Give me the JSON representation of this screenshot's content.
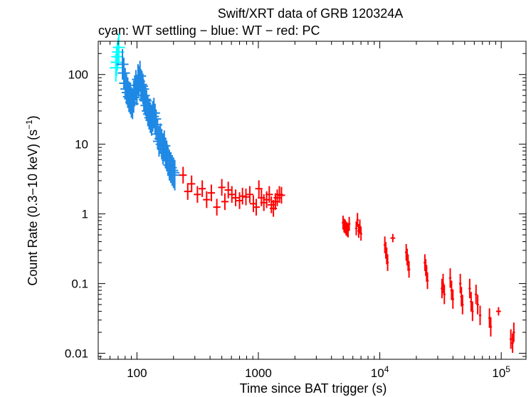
{
  "chart_data": {
    "type": "scatter",
    "title": "Swift/XRT data of GRB 120324A",
    "subtitle": "cyan: WT settling − blue: WT − red: PC",
    "xlabel": "Time since BAT trigger (s)",
    "ylabel_main": "Count Rate (0.3−10 keV) (s",
    "ylabel_sup": "−1",
    "ylabel_end": ")",
    "x_scale": "log",
    "y_scale": "log",
    "xlim": [
      48,
      160000
    ],
    "ylim": [
      0.0082,
      300
    ],
    "x_ticks": [
      {
        "value": 100,
        "label": "100"
      },
      {
        "value": 1000,
        "label": "1000"
      },
      {
        "value": 10000,
        "base": "10",
        "exp": "4"
      },
      {
        "value": 100000,
        "base": "10",
        "exp": "5"
      }
    ],
    "y_ticks": [
      {
        "value": 100,
        "label": "100"
      },
      {
        "value": 10,
        "label": "10"
      },
      {
        "value": 1,
        "label": "1"
      },
      {
        "value": 0.1,
        "label": "0.1"
      },
      {
        "value": 0.01,
        "label": "0.01"
      }
    ],
    "series": [
      {
        "name": "WT settling",
        "color": "#00ffff",
        "points": [
          [
            67,
            125,
            0.05,
            0.2
          ],
          [
            68,
            150,
            0.05,
            0.2
          ],
          [
            69,
            180,
            0.05,
            0.2
          ],
          [
            70,
            210,
            0.05,
            0.2
          ],
          [
            71,
            245,
            0.05,
            0.2
          ]
        ]
      },
      {
        "name": "WT",
        "color": "#1e88e5",
        "points": [
          [
            76,
            140,
            0.05,
            0.22
          ],
          [
            78,
            105,
            0.05,
            0.22
          ],
          [
            80,
            75,
            0.05,
            0.22
          ],
          [
            82,
            62,
            0.05,
            0.22
          ],
          [
            84,
            55,
            0.05,
            0.22
          ],
          [
            86,
            48,
            0.05,
            0.22
          ],
          [
            88,
            45,
            0.05,
            0.22
          ],
          [
            90,
            40,
            0.05,
            0.22
          ],
          [
            92,
            38,
            0.05,
            0.22
          ],
          [
            94,
            47,
            0.05,
            0.22
          ],
          [
            96,
            58,
            0.05,
            0.22
          ],
          [
            98,
            70,
            0.05,
            0.22
          ],
          [
            100,
            60,
            0.05,
            0.22
          ],
          [
            102,
            85,
            0.05,
            0.22
          ],
          [
            104,
            80,
            0.05,
            0.22
          ],
          [
            106,
            95,
            0.05,
            0.22
          ],
          [
            108,
            72,
            0.05,
            0.22
          ],
          [
            110,
            68,
            0.05,
            0.22
          ],
          [
            112,
            62,
            0.05,
            0.22
          ],
          [
            114,
            50,
            0.05,
            0.22
          ],
          [
            116,
            44,
            0.05,
            0.22
          ],
          [
            118,
            42,
            0.05,
            0.22
          ],
          [
            120,
            36,
            0.05,
            0.22
          ],
          [
            123,
            30,
            0.05,
            0.22
          ],
          [
            126,
            27,
            0.05,
            0.22
          ],
          [
            129,
            24,
            0.05,
            0.22
          ],
          [
            132,
            22,
            0.05,
            0.22
          ],
          [
            135,
            25,
            0.05,
            0.22
          ],
          [
            138,
            28,
            0.05,
            0.22
          ],
          [
            141,
            23,
            0.05,
            0.22
          ],
          [
            144,
            19,
            0.05,
            0.22
          ],
          [
            148,
            14,
            0.05,
            0.22
          ],
          [
            152,
            11,
            0.05,
            0.22
          ],
          [
            156,
            12,
            0.05,
            0.22
          ],
          [
            160,
            10,
            0.05,
            0.22
          ],
          [
            164,
            8.5,
            0.05,
            0.22
          ],
          [
            168,
            9.5,
            0.05,
            0.22
          ],
          [
            172,
            7.5,
            0.05,
            0.22
          ],
          [
            176,
            6.8,
            0.05,
            0.22
          ],
          [
            180,
            5.8,
            0.05,
            0.22
          ],
          [
            185,
            5.0,
            0.05,
            0.22
          ],
          [
            190,
            4.6,
            0.05,
            0.22
          ],
          [
            195,
            4.2,
            0.05,
            0.22
          ],
          [
            200,
            3.9,
            0.05,
            0.22
          ],
          [
            205,
            3.6,
            0.05,
            0.22
          ]
        ]
      },
      {
        "name": "PC",
        "color": "#ff0000",
        "points": [
          [
            240,
            3.6,
            0.03,
            0.12
          ],
          [
            262,
            2.1,
            0.03,
            0.12
          ],
          [
            282,
            2.7,
            0.03,
            0.12
          ],
          [
            315,
            1.9,
            0.03,
            0.12
          ],
          [
            345,
            2.3,
            0.03,
            0.12
          ],
          [
            375,
            1.6,
            0.03,
            0.12
          ],
          [
            410,
            2.0,
            0.03,
            0.12
          ],
          [
            455,
            1.25,
            0.03,
            0.12
          ],
          [
            500,
            2.4,
            0.03,
            0.12
          ],
          [
            530,
            1.5,
            0.03,
            0.12
          ],
          [
            565,
            2.2,
            0.03,
            0.12
          ],
          [
            605,
            1.9,
            0.03,
            0.12
          ],
          [
            650,
            1.7,
            0.03,
            0.12
          ],
          [
            700,
            1.55,
            0.03,
            0.12
          ],
          [
            740,
            1.8,
            0.03,
            0.12
          ],
          [
            790,
            1.75,
            0.03,
            0.12
          ],
          [
            850,
            1.9,
            0.03,
            0.12
          ],
          [
            910,
            1.4,
            0.03,
            0.12
          ],
          [
            960,
            1.25,
            0.03,
            0.12
          ],
          [
            1010,
            2.3,
            0.03,
            0.12
          ],
          [
            1060,
            1.7,
            0.03,
            0.12
          ],
          [
            1110,
            1.45,
            0.03,
            0.12
          ],
          [
            1170,
            1.6,
            0.03,
            0.12
          ],
          [
            1230,
            1.9,
            0.03,
            0.12
          ],
          [
            1280,
            1.35,
            0.03,
            0.12
          ],
          [
            1330,
            1.2,
            0.03,
            0.12
          ],
          [
            1380,
            1.5,
            0.03,
            0.12
          ],
          [
            1430,
            1.7,
            0.03,
            0.12
          ],
          [
            1490,
            1.9,
            0.03,
            0.12
          ],
          [
            1550,
            1.85,
            0.03,
            0.12
          ],
          [
            4980,
            0.75,
            0.01,
            0.1
          ],
          [
            5080,
            0.68,
            0.01,
            0.1
          ],
          [
            5180,
            0.66,
            0.01,
            0.1
          ],
          [
            5280,
            0.62,
            0.01,
            0.1
          ],
          [
            5380,
            0.6,
            0.01,
            0.1
          ],
          [
            5480,
            0.58,
            0.01,
            0.1
          ],
          [
            5600,
            0.72,
            0.01,
            0.1
          ],
          [
            6400,
            0.62,
            0.01,
            0.1
          ],
          [
            6550,
            0.82,
            0.01,
            0.1
          ],
          [
            6700,
            0.57,
            0.01,
            0.1
          ],
          [
            6850,
            0.66,
            0.01,
            0.1
          ],
          [
            7000,
            0.52,
            0.01,
            0.1
          ],
          [
            11000,
            0.36,
            0.01,
            0.12
          ],
          [
            11200,
            0.3,
            0.01,
            0.12
          ],
          [
            11400,
            0.25,
            0.01,
            0.12
          ],
          [
            11600,
            0.2,
            0.01,
            0.12
          ],
          [
            12800,
            0.45,
            0.02,
            0.06
          ],
          [
            16500,
            0.28,
            0.01,
            0.12
          ],
          [
            16800,
            0.24,
            0.01,
            0.12
          ],
          [
            17100,
            0.2,
            0.01,
            0.12
          ],
          [
            17400,
            0.16,
            0.01,
            0.12
          ],
          [
            23500,
            0.2,
            0.01,
            0.12
          ],
          [
            23900,
            0.17,
            0.01,
            0.12
          ],
          [
            24300,
            0.14,
            0.01,
            0.12
          ],
          [
            24700,
            0.11,
            0.01,
            0.12
          ],
          [
            32500,
            0.085,
            0.01,
            0.14
          ],
          [
            33200,
            0.1,
            0.01,
            0.14
          ],
          [
            34000,
            0.07,
            0.01,
            0.14
          ],
          [
            38000,
            0.12,
            0.01,
            0.14
          ],
          [
            39000,
            0.08,
            0.01,
            0.14
          ],
          [
            40000,
            0.06,
            0.01,
            0.14
          ],
          [
            46000,
            0.1,
            0.01,
            0.14
          ],
          [
            47000,
            0.065,
            0.01,
            0.14
          ],
          [
            48000,
            0.05,
            0.01,
            0.14
          ],
          [
            55000,
            0.085,
            0.01,
            0.14
          ],
          [
            56500,
            0.055,
            0.01,
            0.14
          ],
          [
            58000,
            0.04,
            0.01,
            0.14
          ],
          [
            62000,
            0.07,
            0.01,
            0.14
          ],
          [
            64000,
            0.05,
            0.01,
            0.14
          ],
          [
            67000,
            0.035,
            0.01,
            0.14
          ],
          [
            80000,
            0.032,
            0.01,
            0.14
          ],
          [
            82000,
            0.024,
            0.01,
            0.14
          ],
          [
            95000,
            0.04,
            0.02,
            0.06
          ],
          [
            120000,
            0.016,
            0.01,
            0.14
          ],
          [
            124000,
            0.014,
            0.01,
            0.14
          ],
          [
            127000,
            0.02,
            0.01,
            0.14
          ]
        ]
      }
    ]
  }
}
